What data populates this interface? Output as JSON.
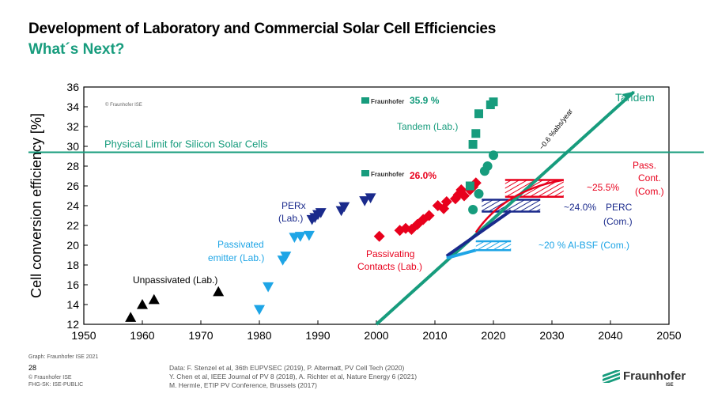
{
  "header": {
    "title": "Development of Laboratory and Commercial Solar Cell Efficiencies",
    "subtitle": "What´s Next?"
  },
  "chart_data": {
    "type": "scatter",
    "ylabel": "Cell conversion efficiency [%]",
    "xlim": [
      1950,
      2050
    ],
    "ylim": [
      12,
      36
    ],
    "x_ticks": [
      1950,
      1960,
      1970,
      1980,
      1990,
      2000,
      2010,
      2020,
      2030,
      2040,
      2050
    ],
    "y_ticks": [
      12,
      14,
      16,
      18,
      20,
      22,
      24,
      26,
      28,
      30,
      32,
      34,
      36
    ],
    "copyright_in_plot": "© Fraunhofer ISE",
    "limit_line": {
      "y": 29.4,
      "label": "Physical Limit for Silicon Solar Cells"
    },
    "series": [
      {
        "name": "Unpassivated (Lab.)",
        "marker": "triangle-up",
        "color": "#000000",
        "points": [
          [
            1958,
            12.7
          ],
          [
            1960,
            14.0
          ],
          [
            1962,
            14.5
          ],
          [
            1973,
            15.3
          ]
        ]
      },
      {
        "name": "Passivated emitter (Lab.)",
        "marker": "triangle-down",
        "color": "#1ea5e6",
        "points": [
          [
            1980,
            13.5
          ],
          [
            1981.5,
            15.8
          ],
          [
            1984,
            18.5
          ],
          [
            1984.5,
            18.9
          ],
          [
            1986,
            20.8
          ],
          [
            1987,
            20.9
          ],
          [
            1988.5,
            21.0
          ]
        ]
      },
      {
        "name": "PERx (Lab.)",
        "marker": "triangle-down",
        "color": "#1a2a8c",
        "points": [
          [
            1989,
            22.6
          ],
          [
            1989.5,
            22.8
          ],
          [
            1990,
            23.1
          ],
          [
            1990.5,
            23.3
          ],
          [
            1994,
            23.5
          ],
          [
            1994.5,
            23.9
          ],
          [
            1998,
            24.5
          ],
          [
            1999,
            24.8
          ]
        ]
      },
      {
        "name": "Passivating Contacts (Lab.)",
        "marker": "diamond",
        "color": "#e8001c",
        "points": [
          [
            2000.5,
            20.9
          ],
          [
            2004,
            21.5
          ],
          [
            2005,
            21.7
          ],
          [
            2006,
            21.6
          ],
          [
            2007,
            22.1
          ],
          [
            2008,
            22.6
          ],
          [
            2009,
            23.0
          ],
          [
            2010.5,
            24.0
          ],
          [
            2011.5,
            23.7
          ],
          [
            2012,
            24.4
          ],
          [
            2013.5,
            24.7
          ],
          [
            2014,
            25.1
          ],
          [
            2014.5,
            25.6
          ],
          [
            2015,
            25.0
          ],
          [
            2016,
            25.6
          ],
          [
            2016.5,
            25.9
          ],
          [
            2017,
            26.3
          ]
        ]
      },
      {
        "name": "Tandem (Lab.) squares",
        "marker": "square",
        "color": "#179c7d",
        "points": [
          [
            2016,
            26.0
          ],
          [
            2016.5,
            30.2
          ],
          [
            2017,
            31.3
          ],
          [
            2017.5,
            33.3
          ],
          [
            2019.5,
            34.2
          ],
          [
            2020,
            34.5
          ]
        ]
      },
      {
        "name": "Tandem (Lab.) circles",
        "marker": "circle",
        "color": "#179c7d",
        "points": [
          [
            2016.5,
            23.6
          ],
          [
            2017.5,
            25.2
          ],
          [
            2018.5,
            27.5
          ],
          [
            2019,
            28.0
          ],
          [
            2020,
            29.1
          ]
        ]
      }
    ],
    "trend_lines": [
      {
        "name": "Tandem",
        "color": "#179c7d",
        "from": [
          2000,
          12
        ],
        "to": [
          2044,
          35.5
        ],
        "annotation": "~0.6 %abs/year"
      },
      {
        "name": "PERC",
        "color": "#1a2a8c",
        "from": [
          2012,
          18.9
        ],
        "to": [
          2023,
          23.5
        ]
      },
      {
        "name": "Al-BSF",
        "color": "#1ea5e6",
        "from": [
          2012,
          18.7
        ],
        "to": [
          2017,
          19.5
        ]
      }
    ],
    "commercial_bands": [
      {
        "name": "Pass. Cont. (Com.)",
        "color": "#e8001c",
        "x": [
          2022,
          2032
        ],
        "y": [
          24.9,
          26.6
        ]
      },
      {
        "name": "PERC (Com.)",
        "color": "#1a2a8c",
        "x": [
          2018,
          2028
        ],
        "y": [
          23.4,
          24.6
        ]
      },
      {
        "name": "Al-BSF (Com.)",
        "color": "#1ea5e6",
        "x": [
          2017,
          2023
        ],
        "y": [
          19.5,
          20.4
        ]
      }
    ],
    "annotations": {
      "tandem_lab": "Tandem (Lab.)",
      "tandem_record": "35.9 %",
      "pc_record": "26.0%",
      "tandem_label": "Tandem",
      "slope": "~0.6 %abs/year",
      "pass_cont_pct": "~25.5%",
      "pass_cont_1": "Pass.",
      "pass_cont_2": "Cont.",
      "pass_cont_3": "(Com.)",
      "perc_pct": "~24.0%",
      "perc_1": "PERC",
      "perc_2": "(Com.)",
      "albsf": "~20 % Al-BSF (Com.)",
      "perx_1": "PERx",
      "perx_2": "(Lab.)",
      "passivated_1": "Passivated",
      "passivated_2": "emitter (Lab.)",
      "unpassivated": "Unpassivated (Lab.)",
      "passivating_1": "Passivating",
      "passivating_2": "Contacts (Lab.)",
      "fraunhofer_badge": "Fraunhofer"
    }
  },
  "footer": {
    "graph_credit": "Graph: Fraunhofer ISE 2021",
    "page_number": "28",
    "copyright_1": "© Fraunhofer ISE",
    "copyright_2": "FHG-SK: ISE-PUBLIC",
    "refs": [
      "Data: F. Stenzel et al, 36th EUPVSEC (2019), P. Altermatt, PV Cell Tech (2020)",
      "Y. Chen et al, IEEE Journal of PV 8 (2018), A. Richter et al, Nature Energy 6 (2021)",
      "M. Hermle, ETIP PV Conference, Brussels (2017)"
    ],
    "logo_text": "Fraunhofer",
    "logo_sub": "ISE"
  }
}
